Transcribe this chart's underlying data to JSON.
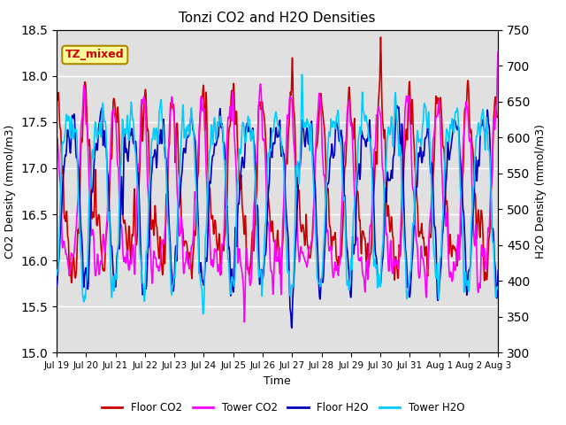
{
  "title": "Tonzi CO2 and H2O Densities",
  "xlabel": "Time",
  "ylabel_left": "CO2 Density (mmol/m3)",
  "ylabel_right": "H2O Density (mmol/m3)",
  "ylim_left": [
    15.0,
    18.5
  ],
  "ylim_right": [
    300,
    750
  ],
  "yticks_left": [
    15.0,
    15.5,
    16.0,
    16.5,
    17.0,
    17.5,
    18.0,
    18.5
  ],
  "yticks_right": [
    300,
    350,
    400,
    450,
    500,
    550,
    600,
    650,
    700,
    750
  ],
  "xtick_labels": [
    "Jul 19",
    "Jul 20",
    "Jul 21",
    "Jul 22",
    "Jul 23",
    "Jul 24",
    "Jul 25",
    "Jul 26",
    "Jul 27",
    "Jul 28",
    "Jul 29",
    "Jul 30",
    "Jul 31",
    "Aug 1",
    "Aug 2",
    "Aug 3"
  ],
  "annotation_text": "TZ_mixed",
  "annotation_bg": "#FFFF99",
  "annotation_border": "#AA8800",
  "fig_bg": "#FFFFFF",
  "plot_bg": "#E0E0E0",
  "line_colors": {
    "floor_co2": "#CC0000",
    "tower_co2": "#FF00FF",
    "floor_h2o": "#0000BB",
    "tower_h2o": "#00CCFF"
  },
  "line_widths": {
    "floor_co2": 1.2,
    "tower_co2": 1.2,
    "floor_h2o": 1.2,
    "tower_h2o": 1.2
  },
  "legend_labels": [
    "Floor CO2",
    "Tower CO2",
    "Floor H2O",
    "Tower H2O"
  ],
  "n_points": 960,
  "co2_base": 16.75,
  "co2_amp": 1.5,
  "h2o_base": 525,
  "h2o_amp": 190
}
